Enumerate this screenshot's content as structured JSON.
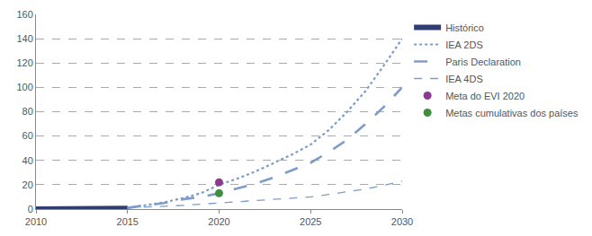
{
  "chart_data": {
    "type": "line",
    "x": [
      2010,
      2011,
      2012,
      2013,
      2014,
      2015,
      2016,
      2017,
      2018,
      2019,
      2020,
      2021,
      2022,
      2023,
      2024,
      2025,
      2026,
      2027,
      2028,
      2029,
      2030
    ],
    "series": [
      {
        "name": "Histórico",
        "color": "#2f3d70",
        "line_style": "solid",
        "values": [
          0,
          0,
          0,
          0.1,
          0.2,
          0.5,
          null,
          null,
          null,
          null,
          null,
          null,
          null,
          null,
          null,
          null,
          null,
          null,
          null,
          null,
          null
        ]
      },
      {
        "name": "IEA 2DS",
        "color": "#7d9cc8",
        "line_style": "dot",
        "values": [
          null,
          null,
          null,
          null,
          null,
          1,
          3,
          5.5,
          9,
          13,
          20,
          25,
          31,
          38,
          45,
          53,
          65,
          80,
          97,
          118,
          140
        ]
      },
      {
        "name": "Paris Declaration",
        "color": "#7d9cc8",
        "line_style": "longdash",
        "values": [
          null,
          null,
          null,
          null,
          null,
          1,
          3,
          5,
          8,
          10,
          13,
          17,
          21,
          26,
          32,
          38,
          47,
          57,
          70,
          84,
          100
        ]
      },
      {
        "name": "IEA 4DS",
        "color": "#7d9cc8",
        "line_style": "dash",
        "values": [
          null,
          null,
          null,
          null,
          null,
          1,
          1.5,
          2,
          3,
          4,
          5,
          6,
          7,
          8,
          9,
          10,
          12,
          14,
          16.5,
          19.5,
          23
        ]
      },
      {
        "name": "Meta do EVI 2020",
        "color": "#8b3a8f",
        "type": "scatter",
        "marker": "circle",
        "values": [
          null,
          null,
          null,
          null,
          null,
          null,
          null,
          null,
          null,
          null,
          22,
          null,
          null,
          null,
          null,
          null,
          null,
          null,
          null,
          null,
          null
        ]
      },
      {
        "name": "Metas cumulativas dos países",
        "color": "#3f8f3f",
        "type": "scatter",
        "marker": "circle",
        "values": [
          null,
          null,
          null,
          null,
          null,
          null,
          null,
          null,
          null,
          null,
          13,
          null,
          null,
          null,
          null,
          null,
          null,
          null,
          null,
          null,
          null
        ]
      }
    ],
    "xlim": [
      2010,
      2030
    ],
    "xticks": [
      2010,
      2015,
      2020,
      2025,
      2030
    ],
    "ylim": [
      0,
      160
    ],
    "yticks": [
      0,
      20,
      40,
      60,
      80,
      100,
      120,
      140,
      160
    ],
    "grid": true,
    "legend": "right"
  }
}
